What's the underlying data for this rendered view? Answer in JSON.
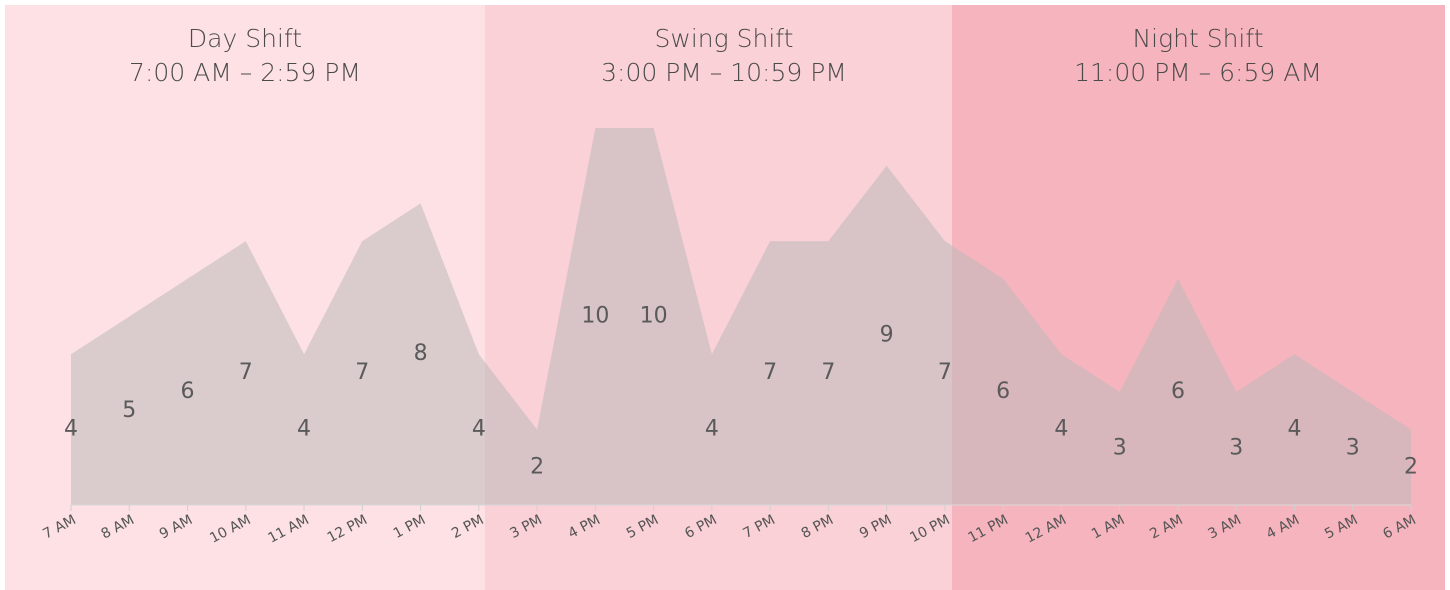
{
  "chart_data": {
    "type": "area",
    "bands": [
      {
        "title": "Day Shift",
        "range": "7:00 AM – 2:59 PM",
        "color": "#fde1e5"
      },
      {
        "title": "Swing Shift",
        "range": "3:00 PM – 10:59 PM",
        "color": "#f9d1d7"
      },
      {
        "title": "Night Shift",
        "range": "11:00 PM – 6:59 AM",
        "color": "#f6b4be"
      }
    ],
    "categories": [
      "7 AM",
      "8 AM",
      "9 AM",
      "10 AM",
      "11 AM",
      "12 PM",
      "1 PM",
      "2 PM",
      "3 PM",
      "4 PM",
      "5 PM",
      "6 PM",
      "7 PM",
      "8 PM",
      "9 PM",
      "10 PM",
      "11 PM",
      "12 AM",
      "1 AM",
      "2 AM",
      "3 AM",
      "4 AM",
      "5 AM",
      "6 AM"
    ],
    "values": [
      4,
      5,
      6,
      7,
      4,
      7,
      8,
      4,
      2,
      10,
      10,
      4,
      7,
      7,
      9,
      7,
      6,
      4,
      3,
      6,
      3,
      4,
      3,
      2
    ],
    "color": "rgba(190,185,186,0.55)",
    "ylim": [
      0,
      10
    ]
  }
}
